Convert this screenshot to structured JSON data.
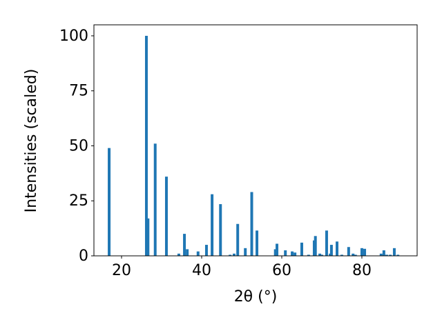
{
  "chart_data": {
    "type": "bar",
    "x_label": "2θ (°)",
    "y_label": "Intensities (scaled)",
    "x": [
      16.9,
      26.2,
      26.6,
      28.4,
      31.2,
      34.3,
      35.7,
      36.4,
      39.1,
      41.2,
      42.6,
      44.7,
      47.1,
      48.1,
      49.0,
      50.9,
      52.5,
      53.8,
      58.4,
      58.8,
      60.9,
      62.6,
      63.3,
      65.0,
      66.7,
      68.1,
      68.4,
      69.5,
      70.0,
      71.2,
      72.1,
      72.4,
      73.8,
      75.0,
      76.7,
      77.8,
      78.4,
      80.0,
      80.7,
      84.8,
      85.5,
      86.2,
      87.1,
      88.1,
      89.0
    ],
    "values": [
      49,
      100,
      17,
      51,
      36,
      1,
      10,
      3,
      2,
      5,
      28,
      23.5,
      0.5,
      1,
      14.5,
      3.5,
      29,
      11.5,
      3,
      5.5,
      2.5,
      2,
      1.5,
      6,
      0.5,
      7,
      9,
      1,
      0.5,
      11.5,
      1,
      5,
      6.5,
      0.5,
      4,
      1,
      0.5,
      3.5,
      3.2,
      1,
      2.5,
      0.5,
      0.5,
      3.5,
      0.5
    ],
    "color": "#1f77b4",
    "xlim": [
      13.1,
      93.8
    ],
    "xticks": [
      20,
      40,
      60,
      80
    ],
    "ylim": [
      0,
      105
    ],
    "yticks": [
      0,
      25,
      50,
      75,
      100
    ]
  }
}
